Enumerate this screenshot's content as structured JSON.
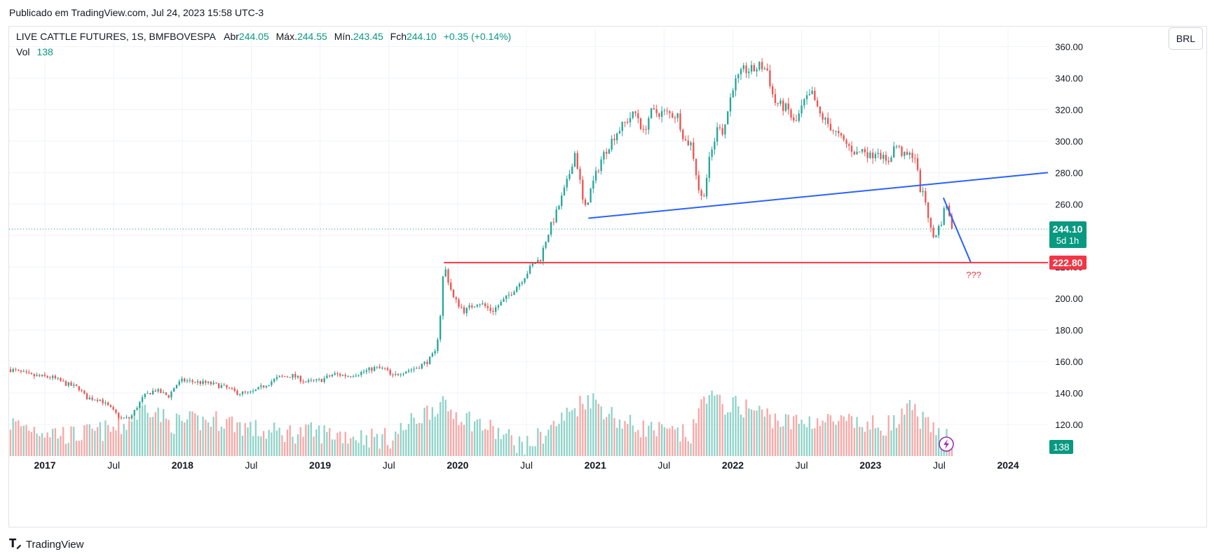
{
  "header": {
    "published": "Publicado em TradingView.com, Jul 24, 2023 15:58 UTC-3"
  },
  "legend": {
    "symbol": "LIVE CATTLE FUTURES, 1S, BMFBOVESPA",
    "open_label": "Abr",
    "open": "244.05",
    "high_label": "Máx.",
    "high": "244.55",
    "low_label": "Mín.",
    "low": "243.45",
    "close_label": "Fch",
    "close": "244.10",
    "change": "+0.35 (+0.14%)",
    "vol_label": "Vol",
    "vol": "138"
  },
  "currency_button": "BRL",
  "price_tag": {
    "value": "244.10",
    "countdown": "5d 1h"
  },
  "level_tag": "222.80",
  "vol_tag": "138",
  "annotation": "???",
  "footer": {
    "brand": "TradingView"
  },
  "colors": {
    "up": "#26a69a",
    "down": "#ef5350",
    "vol_up": "#8fd3c9",
    "vol_down": "#f7a8a6",
    "trendline": "#2962ff",
    "level": "#f23645",
    "accent": "#089981"
  },
  "chart_data": {
    "type": "candlestick",
    "ylim": [
      100,
      362
    ],
    "y_ticks": [
      "120.00",
      "140.00",
      "160.00",
      "180.00",
      "200.00",
      "220.00",
      "240.00",
      "260.00",
      "280.00",
      "300.00",
      "320.00",
      "340.00",
      "360.00"
    ],
    "x_ticks": [
      "2017",
      "Jul",
      "2018",
      "Jul",
      "2019",
      "Jul",
      "2020",
      "Jul",
      "2021",
      "Jul",
      "2022",
      "Jul",
      "2023",
      "Jul",
      "2024"
    ],
    "x_tick_years": [
      2017,
      2017.5,
      2018,
      2018.5,
      2019,
      2019.5,
      2020,
      2020.5,
      2021,
      2021.5,
      2022,
      2022.5,
      2023,
      2023.5,
      2024
    ],
    "xlim": [
      2016.74,
      2024.29
    ],
    "price_path": [
      [
        2016.75,
        155
      ],
      [
        2016.9,
        151
      ],
      [
        2017.05,
        150
      ],
      [
        2017.15,
        146
      ],
      [
        2017.25,
        143
      ],
      [
        2017.3,
        137
      ],
      [
        2017.4,
        136
      ],
      [
        2017.48,
        130
      ],
      [
        2017.55,
        124
      ],
      [
        2017.62,
        124
      ],
      [
        2017.66,
        130
      ],
      [
        2017.72,
        138
      ],
      [
        2017.8,
        142
      ],
      [
        2017.9,
        138
      ],
      [
        2017.95,
        145
      ],
      [
        2018.0,
        148
      ],
      [
        2018.1,
        147
      ],
      [
        2018.2,
        146
      ],
      [
        2018.3,
        144
      ],
      [
        2018.4,
        140
      ],
      [
        2018.5,
        140
      ],
      [
        2018.6,
        145
      ],
      [
        2018.7,
        150
      ],
      [
        2018.8,
        151
      ],
      [
        2018.9,
        147
      ],
      [
        2019.0,
        148
      ],
      [
        2019.1,
        152
      ],
      [
        2019.2,
        151
      ],
      [
        2019.3,
        153
      ],
      [
        2019.4,
        156
      ],
      [
        2019.48,
        155
      ],
      [
        2019.52,
        150
      ],
      [
        2019.58,
        153
      ],
      [
        2019.7,
        156
      ],
      [
        2019.78,
        160
      ],
      [
        2019.84,
        166
      ],
      [
        2019.87,
        185
      ],
      [
        2019.9,
        222
      ],
      [
        2019.93,
        212
      ],
      [
        2019.97,
        200
      ],
      [
        2020.05,
        192
      ],
      [
        2020.15,
        198
      ],
      [
        2020.25,
        192
      ],
      [
        2020.35,
        200
      ],
      [
        2020.45,
        210
      ],
      [
        2020.55,
        222
      ],
      [
        2020.6,
        225
      ],
      [
        2020.65,
        240
      ],
      [
        2020.72,
        255
      ],
      [
        2020.8,
        275
      ],
      [
        2020.85,
        293
      ],
      [
        2020.88,
        280
      ],
      [
        2020.92,
        255
      ],
      [
        2020.97,
        270
      ],
      [
        2021.05,
        290
      ],
      [
        2021.15,
        305
      ],
      [
        2021.25,
        315
      ],
      [
        2021.3,
        318
      ],
      [
        2021.35,
        305
      ],
      [
        2021.4,
        318
      ],
      [
        2021.5,
        318
      ],
      [
        2021.6,
        316
      ],
      [
        2021.65,
        300
      ],
      [
        2021.7,
        298
      ],
      [
        2021.75,
        270
      ],
      [
        2021.78,
        262
      ],
      [
        2021.83,
        288
      ],
      [
        2021.9,
        312
      ],
      [
        2021.93,
        305
      ],
      [
        2022.0,
        335
      ],
      [
        2022.08,
        345
      ],
      [
        2022.15,
        345
      ],
      [
        2022.2,
        348
      ],
      [
        2022.25,
        345
      ],
      [
        2022.3,
        325
      ],
      [
        2022.4,
        320
      ],
      [
        2022.45,
        310
      ],
      [
        2022.52,
        325
      ],
      [
        2022.58,
        330
      ],
      [
        2022.62,
        318
      ],
      [
        2022.7,
        310
      ],
      [
        2022.8,
        300
      ],
      [
        2022.9,
        292
      ],
      [
        2022.95,
        295
      ],
      [
        2023.0,
        290
      ],
      [
        2023.05,
        295
      ],
      [
        2023.12,
        285
      ],
      [
        2023.18,
        298
      ],
      [
        2023.25,
        290
      ],
      [
        2023.32,
        292
      ],
      [
        2023.36,
        270
      ],
      [
        2023.4,
        262
      ],
      [
        2023.45,
        238
      ],
      [
        2023.48,
        242
      ],
      [
        2023.52,
        250
      ],
      [
        2023.55,
        262
      ],
      [
        2023.58,
        248
      ],
      [
        2023.6,
        244
      ]
    ],
    "volume_path": [
      [
        2016.75,
        118
      ],
      [
        2017.2,
        110
      ],
      [
        2017.55,
        115
      ],
      [
        2017.75,
        130
      ],
      [
        2017.9,
        118
      ],
      [
        2018.3,
        120
      ],
      [
        2018.6,
        112
      ],
      [
        2019.0,
        112
      ],
      [
        2019.5,
        108
      ],
      [
        2019.85,
        130
      ],
      [
        2020.1,
        120
      ],
      [
        2020.5,
        103
      ],
      [
        2020.75,
        120
      ],
      [
        2020.95,
        135
      ],
      [
        2021.2,
        118
      ],
      [
        2021.5,
        112
      ],
      [
        2021.7,
        110
      ],
      [
        2021.8,
        138
      ],
      [
        2021.9,
        130
      ],
      [
        2022.1,
        128
      ],
      [
        2022.4,
        118
      ],
      [
        2022.6,
        120
      ],
      [
        2022.8,
        118
      ],
      [
        2023.0,
        116
      ],
      [
        2023.2,
        118
      ],
      [
        2023.3,
        128
      ],
      [
        2023.45,
        112
      ],
      [
        2023.55,
        112
      ]
    ],
    "trendline_1": {
      "x": [
        2020.95,
        2024.29
      ],
      "y": [
        251,
        280
      ]
    },
    "projection": {
      "x": [
        2023.53,
        2023.73
      ],
      "y": [
        264,
        222.8
      ]
    },
    "level_line": {
      "x": [
        2019.9,
        2024.29
      ],
      "y": 222.8
    }
  }
}
